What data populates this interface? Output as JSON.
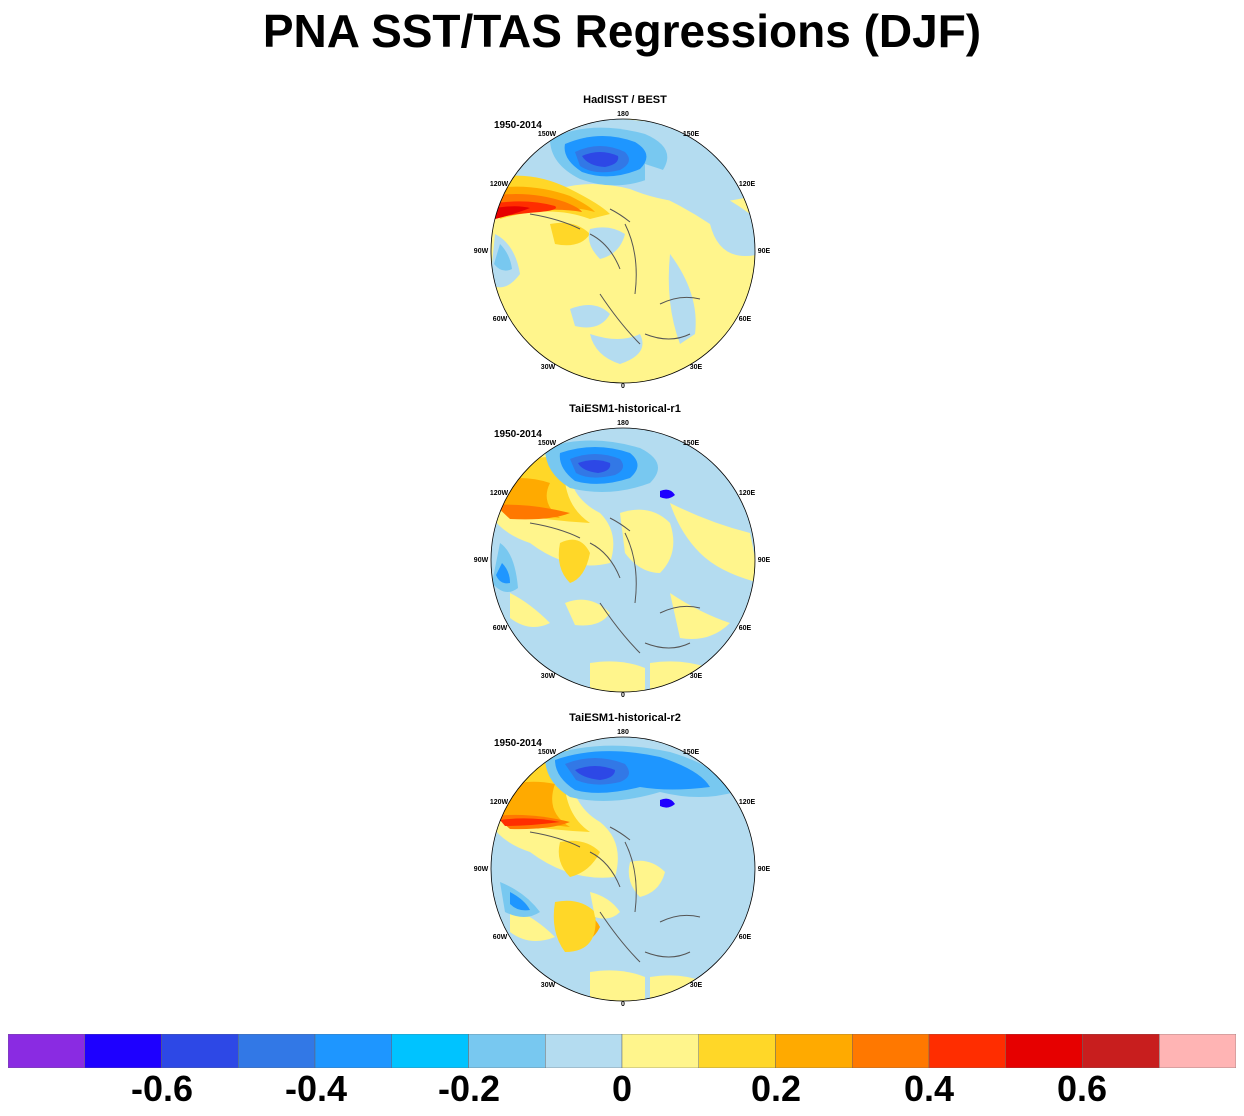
{
  "title": "PNA SST/TAS Regressions (DJF)",
  "panels": [
    {
      "title": "HadISST / BEST",
      "period": "1950-2014"
    },
    {
      "title": "TaiESM1-historical-r1",
      "period": "1950-2014"
    },
    {
      "title": "TaiESM1-historical-r2",
      "period": "1950-2014"
    }
  ],
  "longitude_labels": [
    "180",
    "150E",
    "120E",
    "90E",
    "60E",
    "30E",
    "0",
    "30W",
    "60W",
    "90W",
    "120W",
    "150W"
  ],
  "colorbar": {
    "colors": [
      "#8a2be2",
      "#1e00ff",
      "#2d48e6",
      "#3278e6",
      "#1e96ff",
      "#00c3ff",
      "#78c8f0",
      "#b4dcf0",
      "#fff58c",
      "#ffd728",
      "#ffaa00",
      "#ff7800",
      "#ff2d00",
      "#e60000",
      "#c81e1e",
      "#ffb4b4"
    ],
    "tick_labels": [
      "-0.6",
      "-0.4",
      "-0.2",
      "0",
      "0.2",
      "0.4",
      "0.6"
    ]
  }
}
